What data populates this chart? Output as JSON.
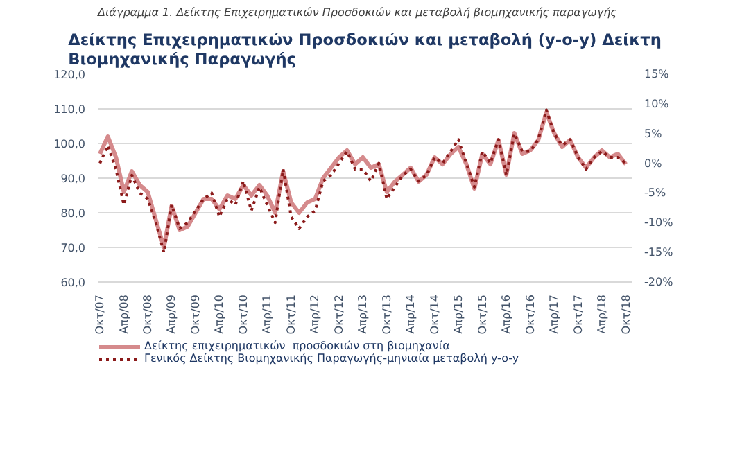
{
  "chart_data": {
    "type": "line",
    "title": "Δείκτης Επιχειρηματικών Προσδοκιών και μεταβολή (y-o-y) Δείκτη Βιομηχανικής Παραγωγής",
    "annotations": [
      "Διάγραμμα 1. Δείκτης Επιχειρηματικών Προσδοκιών και μεταβολή βιομηχανικής παραγωγής"
    ],
    "x": [
      "2007-10",
      "2007-12",
      "2008-02",
      "2008-04",
      "2008-06",
      "2008-08",
      "2008-10",
      "2008-12",
      "2009-02",
      "2009-04",
      "2009-06",
      "2009-08",
      "2009-10",
      "2009-12",
      "2010-02",
      "2010-04",
      "2010-06",
      "2010-08",
      "2010-10",
      "2010-12",
      "2011-02",
      "2011-04",
      "2011-06",
      "2011-08",
      "2011-10",
      "2011-12",
      "2012-02",
      "2012-04",
      "2012-06",
      "2012-08",
      "2012-10",
      "2012-12",
      "2013-02",
      "2013-04",
      "2013-06",
      "2013-08",
      "2013-10",
      "2013-12",
      "2014-02",
      "2014-04",
      "2014-06",
      "2014-08",
      "2014-10",
      "2014-12",
      "2015-02",
      "2015-04",
      "2015-06",
      "2015-08",
      "2015-10",
      "2015-12",
      "2016-02",
      "2016-04",
      "2016-06",
      "2016-08",
      "2016-10",
      "2016-12",
      "2017-02",
      "2017-04",
      "2017-06",
      "2017-08",
      "2017-10",
      "2017-12",
      "2018-02",
      "2018-04",
      "2018-06",
      "2018-08",
      "2018-10"
    ],
    "series": [
      {
        "name": "Δείκτης επιχειρηματικών  προσδοκιών στη βιομηχανία",
        "color": "#d58a8c",
        "line_style": "solid",
        "values": [
          97,
          102,
          96,
          86,
          92,
          88,
          86,
          78,
          70,
          82,
          75,
          76,
          80,
          84,
          84,
          81,
          85,
          84,
          88,
          85,
          88,
          85,
          80,
          92,
          83,
          80,
          83,
          84,
          90,
          93,
          96,
          98,
          94,
          96,
          93,
          94,
          86,
          89,
          91,
          93,
          89,
          91,
          96,
          94,
          97,
          99,
          94,
          87,
          97,
          94,
          101,
          91,
          103,
          97,
          98,
          101,
          109,
          103,
          99,
          101,
          96,
          93,
          96,
          98,
          96,
          97,
          94
        ]
      },
      {
        "name": "Γενικός Δείκτης Βιομηχανικής Παραγωγής-μηνιαία μεταβολή y-o-y",
        "color": "#8b1a1a",
        "line_style": "dotted",
        "axis": "y2",
        "values": [
          0,
          3,
          -1,
          -7,
          -2,
          -5,
          -6,
          -10,
          -15,
          -7,
          -11,
          -10,
          -8,
          -6,
          -5,
          -9,
          -6,
          -7,
          -3,
          -8,
          -4,
          -7,
          -10,
          -1,
          -9,
          -11,
          -9,
          -8,
          -3,
          -2,
          0,
          2,
          -1,
          -1,
          -3,
          0,
          -6,
          -4,
          -2,
          -1,
          -3,
          -2,
          1,
          0,
          2,
          4,
          0,
          -4,
          2,
          0,
          4,
          -2,
          5,
          2,
          2,
          4,
          9,
          5,
          3,
          4,
          1,
          -1,
          1,
          2,
          1,
          1,
          0
        ]
      }
    ],
    "xlim": [
      "2007-09-15",
      "2018-11-15"
    ],
    "xticks": [
      {
        "value": "2007-10",
        "label": "Οκτ/07"
      },
      {
        "value": "2008-04",
        "label": "Απρ/08"
      },
      {
        "value": "2008-10",
        "label": "Οκτ/08"
      },
      {
        "value": "2009-04",
        "label": "Απρ/09"
      },
      {
        "value": "2009-10",
        "label": "Οκτ/09"
      },
      {
        "value": "2010-04",
        "label": "Απρ/10"
      },
      {
        "value": "2010-10",
        "label": "Οκτ/10"
      },
      {
        "value": "2011-04",
        "label": "Απρ/11"
      },
      {
        "value": "2011-10",
        "label": "Οκτ/11"
      },
      {
        "value": "2012-04",
        "label": "Απρ/12"
      },
      {
        "value": "2012-10",
        "label": "Οκτ/12"
      },
      {
        "value": "2013-04",
        "label": "Απρ/13"
      },
      {
        "value": "2013-10",
        "label": "Οκτ/13"
      },
      {
        "value": "2014-04",
        "label": "Απρ/14"
      },
      {
        "value": "2014-10",
        "label": "Οκτ/14"
      },
      {
        "value": "2015-04",
        "label": "Απρ/15"
      },
      {
        "value": "2015-10",
        "label": "Οκτ/15"
      },
      {
        "value": "2016-04",
        "label": "Απρ/16"
      },
      {
        "value": "2016-10",
        "label": "Οκτ/16"
      },
      {
        "value": "2017-04",
        "label": "Απρ/17"
      },
      {
        "value": "2017-10",
        "label": "Οκτ/17"
      },
      {
        "value": "2018-04",
        "label": "Απρ/18"
      },
      {
        "value": "2018-10",
        "label": "Οκτ/18"
      }
    ],
    "ylim": [
      60,
      120
    ],
    "yticks": [
      {
        "value": 60,
        "label": "60,0"
      },
      {
        "value": 70,
        "label": "70,0"
      },
      {
        "value": 80,
        "label": "80,0"
      },
      {
        "value": 90,
        "label": "90,0"
      },
      {
        "value": 100,
        "label": "100,0"
      },
      {
        "value": 110,
        "label": "110,0"
      },
      {
        "value": 120,
        "label": "120,0"
      }
    ],
    "y2lim": [
      -20,
      15
    ],
    "y2ticks": [
      {
        "value": -20,
        "label": "-20%"
      },
      {
        "value": -15,
        "label": "-15%"
      },
      {
        "value": -10,
        "label": "-10%"
      },
      {
        "value": -5,
        "label": "-5%"
      },
      {
        "value": 0,
        "label": "0%"
      },
      {
        "value": 5,
        "label": "5%"
      },
      {
        "value": 10,
        "label": "10%"
      },
      {
        "value": 15,
        "label": "15%"
      }
    ],
    "grid": "y",
    "legend": "bottom"
  }
}
